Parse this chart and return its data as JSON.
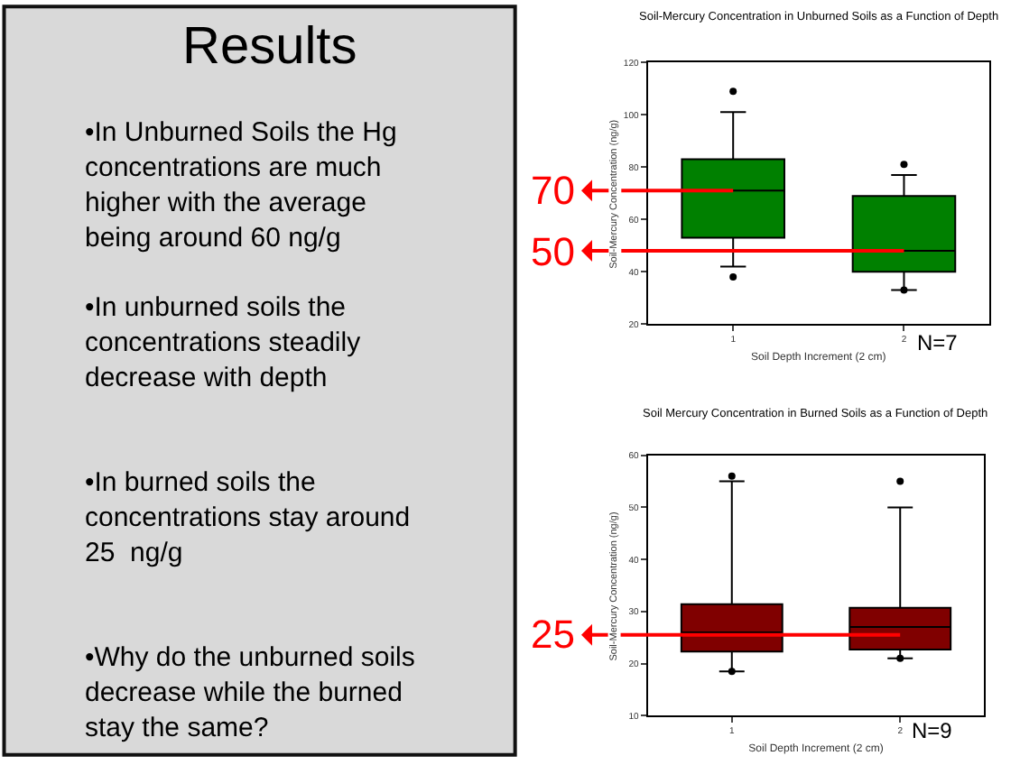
{
  "chart_data": [
    {
      "type": "other",
      "title": "Results",
      "annotations": [
        "•In Unburned Soils the Hg concentrations are much higher with the average being around 60 ng/g",
        "•In unburned soils the concentrations steadily decrease with depth",
        "•In burned soils the concentrations stay around 25  ng/g",
        "•Why do the unburned soils decrease while the burned stay the same?"
      ]
    },
    {
      "type": "box",
      "title": "Soil-Mercury Concentration in Unburned Soils as a Function of Depth",
      "xlabel": "Soil Depth Increment (2 cm)",
      "ylabel": "Soil-Mercury Concentration (ng/g)",
      "categories": [
        "1",
        "2"
      ],
      "color": "#008000",
      "ylim": [
        20,
        120
      ],
      "yticks": [
        20,
        40,
        60,
        80,
        100,
        120
      ],
      "boxes": [
        {
          "low": 42,
          "q1": 53,
          "median": 71,
          "q3": 83,
          "high": 101,
          "outliers": [
            109,
            38
          ]
        },
        {
          "low": 33,
          "q1": 40,
          "median": 48,
          "q3": 69,
          "high": 77,
          "outliers": [
            81,
            33
          ]
        }
      ],
      "annotations": [
        {
          "text": "70",
          "x": "1",
          "y": 71
        },
        {
          "text": "50",
          "x": "2",
          "y": 48
        },
        "N=7"
      ]
    },
    {
      "type": "box",
      "title": "Soil Mercury Concentration in Burned Soils as a Function of Depth",
      "xlabel": "Soil Depth Increment (2 cm)",
      "ylabel": "Soil-Mercury Concentration (ng/g)",
      "categories": [
        "1",
        "2"
      ],
      "color": "#800000",
      "ylim": [
        10,
        60
      ],
      "yticks": [
        10,
        20,
        30,
        40,
        50,
        60
      ],
      "boxes": [
        {
          "low": 18.5,
          "q1": 22.3,
          "median": 26,
          "q3": 31.4,
          "high": 55,
          "outliers": [
            56,
            18.5
          ]
        },
        {
          "low": 21,
          "q1": 22.7,
          "median": 27,
          "q3": 30.7,
          "high": 50,
          "outliers": [
            55,
            21
          ]
        }
      ],
      "annotations": [
        {
          "text": "25",
          "x": "2",
          "y": 25.5
        },
        "N=9"
      ]
    }
  ]
}
